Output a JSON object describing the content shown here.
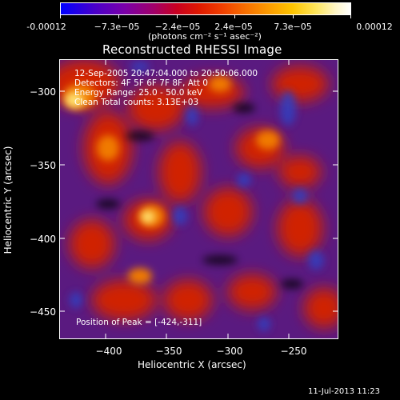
{
  "colorbar": {
    "tick_labels": [
      "-0.00012",
      "−7.3e−05",
      "−2.4e−05",
      "2.4e−05",
      "7.3e−05",
      "0.00012"
    ],
    "units_text": "(photons cm⁻² s⁻¹ asec⁻²)"
  },
  "plot": {
    "title": "Reconstructed RHESSI Image",
    "info_lines": [
      "12-Sep-2005 20:47:04.000 to 20:50:06.000",
      "Detectors: 4F 5F 6F 7F 8F, Att 0",
      "Energy Range: 25.0 - 50.0 keV",
      "Clean    Total counts: 3.13E+03"
    ],
    "peak_text": "Position of Peak = [-424,-311]",
    "x_axis": {
      "label": "Heliocentric X (arcsec)",
      "ticks": [
        "−400",
        "−350",
        "−300",
        "−250"
      ]
    },
    "y_axis": {
      "label": "Heliocentric Y (arcsec)",
      "ticks": [
        "−300",
        "−350",
        "−400",
        "−450"
      ]
    }
  },
  "timestamp": "11-Jul-2013 11:23",
  "colors": {
    "background": "#000000",
    "foreground": "#ffffff"
  }
}
